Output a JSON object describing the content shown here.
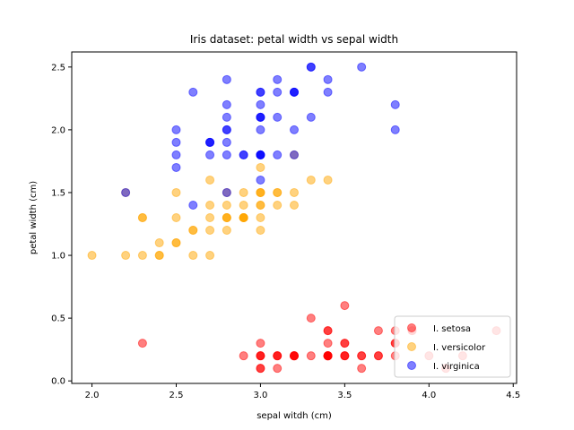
{
  "chart_data": {
    "type": "scatter",
    "title": "Iris dataset: petal width vs sepal width",
    "xlabel": "sepal witdh (cm)",
    "ylabel": "petal width (cm)",
    "xlim": [
      1.88,
      4.52
    ],
    "ylim": [
      -0.02,
      2.62
    ],
    "xticks": [
      2.0,
      2.5,
      3.0,
      3.5,
      4.0,
      4.5
    ],
    "xtick_labels": [
      "2.0",
      "2.5",
      "3.0",
      "3.5",
      "4.0",
      "4.5"
    ],
    "yticks": [
      0.0,
      0.5,
      1.0,
      1.5,
      2.0,
      2.5
    ],
    "ytick_labels": [
      "0.0",
      "0.5",
      "1.0",
      "1.5",
      "2.0",
      "2.5"
    ],
    "grid": false,
    "legend_position": "lower-right",
    "marker_alpha": 0.5,
    "series": [
      {
        "name": "I. setosa",
        "color": "#ff0000",
        "x": [
          3.5,
          3.0,
          3.2,
          3.1,
          3.6,
          3.9,
          3.4,
          3.4,
          2.9,
          3.1,
          3.7,
          3.4,
          3.0,
          3.0,
          4.0,
          4.4,
          3.9,
          3.5,
          3.8,
          3.8,
          3.4,
          3.7,
          3.6,
          3.3,
          3.4,
          3.0,
          3.4,
          3.5,
          3.4,
          3.2,
          3.1,
          3.4,
          4.1,
          4.2,
          3.1,
          3.2,
          3.5,
          3.6,
          3.0,
          3.4,
          3.5,
          2.3,
          3.2,
          3.5,
          3.8,
          3.0,
          3.8,
          3.2,
          3.7,
          3.3
        ],
        "y": [
          0.2,
          0.2,
          0.2,
          0.2,
          0.2,
          0.4,
          0.3,
          0.2,
          0.2,
          0.1,
          0.2,
          0.2,
          0.1,
          0.1,
          0.2,
          0.4,
          0.4,
          0.3,
          0.3,
          0.3,
          0.2,
          0.4,
          0.2,
          0.5,
          0.2,
          0.2,
          0.4,
          0.2,
          0.2,
          0.2,
          0.2,
          0.4,
          0.1,
          0.2,
          0.2,
          0.2,
          0.2,
          0.1,
          0.2,
          0.2,
          0.3,
          0.3,
          0.2,
          0.6,
          0.4,
          0.3,
          0.2,
          0.2,
          0.2,
          0.2
        ]
      },
      {
        "name": "I. versicolor",
        "color": "#ffa500",
        "x": [
          3.2,
          3.2,
          3.1,
          2.3,
          2.8,
          2.8,
          3.3,
          2.4,
          2.9,
          2.7,
          2.0,
          3.0,
          2.2,
          2.9,
          2.9,
          3.1,
          3.0,
          2.7,
          2.2,
          2.5,
          3.2,
          2.8,
          2.5,
          2.8,
          2.9,
          3.0,
          2.8,
          3.0,
          2.9,
          2.6,
          2.4,
          2.4,
          2.7,
          2.7,
          3.0,
          3.4,
          3.1,
          2.3,
          3.0,
          2.5,
          2.6,
          3.0,
          2.6,
          2.3,
          2.7,
          3.0,
          2.9,
          2.9,
          2.5,
          2.8
        ],
        "y": [
          1.4,
          1.5,
          1.5,
          1.3,
          1.5,
          1.3,
          1.6,
          1.0,
          1.3,
          1.4,
          1.0,
          1.5,
          1.0,
          1.4,
          1.3,
          1.4,
          1.5,
          1.0,
          1.5,
          1.1,
          1.8,
          1.3,
          1.5,
          1.2,
          1.3,
          1.4,
          1.4,
          1.7,
          1.5,
          1.0,
          1.1,
          1.0,
          1.2,
          1.6,
          1.5,
          1.6,
          1.5,
          1.3,
          1.3,
          1.3,
          1.2,
          1.4,
          1.2,
          1.0,
          1.3,
          1.2,
          1.3,
          1.3,
          1.1,
          1.3
        ]
      },
      {
        "name": "I. virginica",
        "color": "#0000ff",
        "x": [
          3.3,
          2.7,
          3.0,
          2.9,
          3.0,
          3.0,
          2.5,
          2.9,
          2.5,
          3.6,
          3.2,
          2.7,
          3.0,
          2.5,
          2.8,
          3.2,
          3.0,
          3.8,
          2.6,
          2.2,
          3.2,
          2.8,
          2.8,
          2.7,
          3.3,
          3.2,
          2.8,
          3.0,
          2.8,
          3.0,
          2.8,
          3.8,
          2.8,
          2.8,
          2.6,
          3.0,
          3.4,
          3.1,
          3.0,
          3.1,
          3.1,
          3.1,
          2.7,
          3.2,
          3.3,
          3.0,
          2.5,
          3.0,
          3.4,
          3.0
        ],
        "y": [
          2.5,
          1.9,
          2.1,
          1.8,
          2.2,
          2.1,
          1.7,
          1.8,
          1.8,
          2.5,
          2.0,
          1.9,
          2.1,
          2.0,
          2.4,
          2.3,
          1.8,
          2.2,
          2.3,
          1.5,
          2.3,
          2.0,
          2.0,
          1.8,
          2.1,
          1.8,
          1.8,
          1.8,
          2.1,
          1.6,
          1.9,
          2.0,
          2.2,
          1.5,
          1.4,
          2.3,
          2.4,
          1.8,
          1.8,
          2.1,
          2.4,
          2.3,
          1.9,
          2.3,
          2.5,
          2.3,
          1.9,
          2.0,
          2.3,
          1.8
        ]
      }
    ]
  }
}
